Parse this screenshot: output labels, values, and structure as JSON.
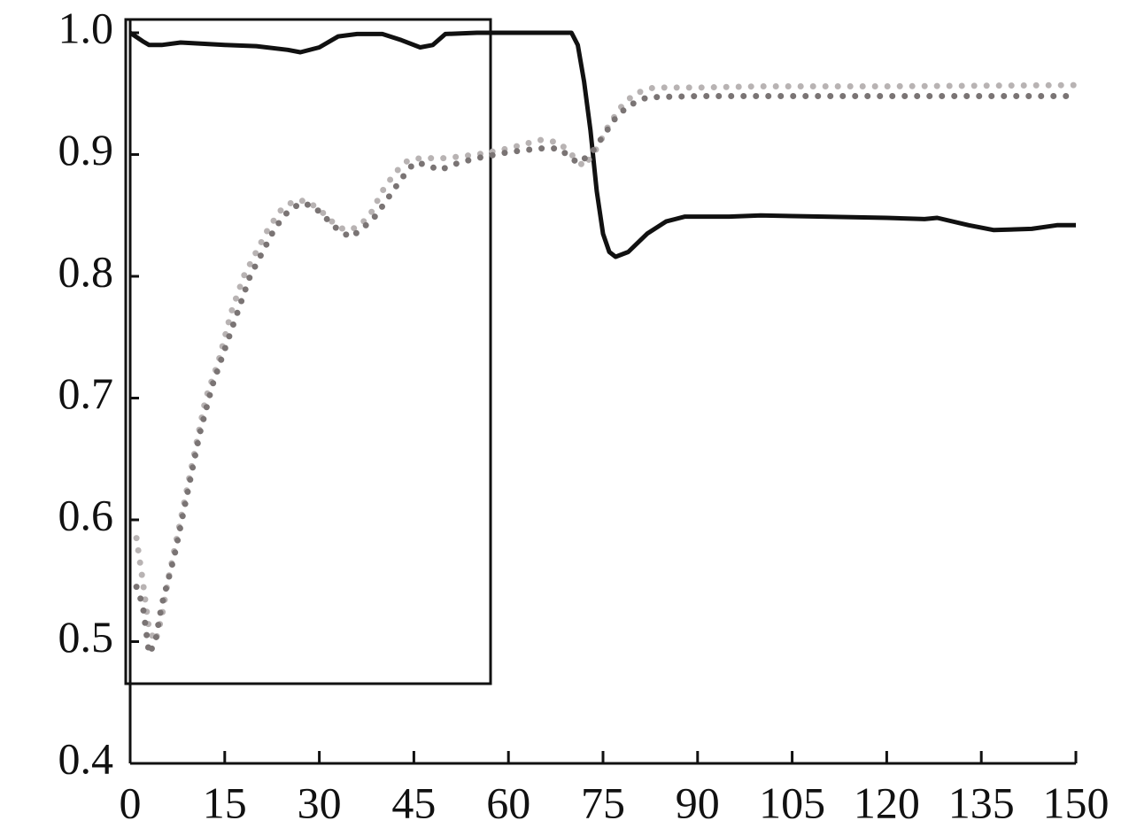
{
  "chart_data": {
    "type": "line",
    "xlim": [
      0,
      150
    ],
    "xticks": [
      0,
      15,
      30,
      45,
      60,
      75,
      90,
      105,
      120,
      135,
      150
    ],
    "ylim": [
      0.4,
      1.01
    ],
    "yticks": [
      {
        "value": 0.4,
        "label": "0.4"
      },
      {
        "value": 0.5,
        "label": "0.5"
      },
      {
        "value": 0.6,
        "label": "0.6"
      },
      {
        "value": 0.7,
        "label": "0.7"
      },
      {
        "value": 0.8,
        "label": "0.8"
      },
      {
        "value": 0.9,
        "label": "0.9"
      },
      {
        "value": 1.0,
        "label": "1.0"
      }
    ],
    "grid": false,
    "series": [
      {
        "color": "#111111",
        "style": "solid",
        "x": [
          0,
          2,
          3,
          5,
          8,
          15,
          20,
          25,
          27,
          30,
          33,
          36,
          40,
          43,
          46,
          48,
          50,
          55,
          70,
          71,
          72,
          73,
          74,
          75,
          76,
          77,
          79,
          82,
          85,
          88,
          95,
          100,
          110,
          120,
          126,
          128,
          133,
          137,
          143,
          147,
          150
        ],
        "values": [
          1.0,
          0.993,
          0.99,
          0.99,
          0.992,
          0.99,
          0.989,
          0.986,
          0.984,
          0.988,
          0.997,
          0.999,
          0.999,
          0.994,
          0.988,
          0.99,
          0.999,
          1.0,
          1.0,
          0.99,
          0.96,
          0.92,
          0.87,
          0.835,
          0.82,
          0.816,
          0.82,
          0.835,
          0.845,
          0.849,
          0.849,
          0.85,
          0.849,
          0.848,
          0.847,
          0.848,
          0.842,
          0.838,
          0.839,
          0.842,
          0.842
        ]
      },
      {
        "color": "#b8b3b3",
        "style": "dotted",
        "x": [
          1,
          2,
          3,
          4,
          5,
          6,
          8,
          10,
          12,
          14,
          16,
          18,
          20,
          22,
          24,
          26,
          28,
          30,
          32,
          34,
          36,
          38,
          40,
          42,
          44,
          46,
          50,
          55,
          60,
          65,
          68,
          70,
          72,
          74,
          76,
          78,
          80,
          83,
          90,
          100,
          120,
          150
        ],
        "values": [
          0.585,
          0.55,
          0.51,
          0.5,
          0.52,
          0.55,
          0.6,
          0.65,
          0.7,
          0.73,
          0.77,
          0.8,
          0.82,
          0.84,
          0.855,
          0.862,
          0.862,
          0.855,
          0.845,
          0.838,
          0.84,
          0.85,
          0.87,
          0.885,
          0.895,
          0.897,
          0.897,
          0.9,
          0.905,
          0.912,
          0.91,
          0.9,
          0.89,
          0.905,
          0.925,
          0.94,
          0.95,
          0.955,
          0.955,
          0.956,
          0.956,
          0.957
        ]
      },
      {
        "color": "#7a7474",
        "style": "dotted",
        "x": [
          1,
          2,
          3,
          4,
          5,
          7,
          9,
          11,
          13,
          15,
          17,
          19,
          21,
          23,
          25,
          27,
          29,
          31,
          33,
          35,
          37,
          39,
          41,
          43,
          45,
          47,
          49,
          52,
          55,
          60,
          65,
          68,
          71,
          73,
          75,
          77,
          79,
          82,
          90,
          120,
          150
        ],
        "values": [
          0.545,
          0.53,
          0.49,
          0.5,
          0.53,
          0.57,
          0.62,
          0.67,
          0.71,
          0.74,
          0.77,
          0.8,
          0.82,
          0.84,
          0.853,
          0.86,
          0.858,
          0.848,
          0.838,
          0.832,
          0.84,
          0.85,
          0.865,
          0.88,
          0.893,
          0.892,
          0.887,
          0.893,
          0.897,
          0.902,
          0.905,
          0.905,
          0.893,
          0.9,
          0.915,
          0.93,
          0.94,
          0.947,
          0.948,
          0.948,
          0.948
        ]
      }
    ]
  }
}
